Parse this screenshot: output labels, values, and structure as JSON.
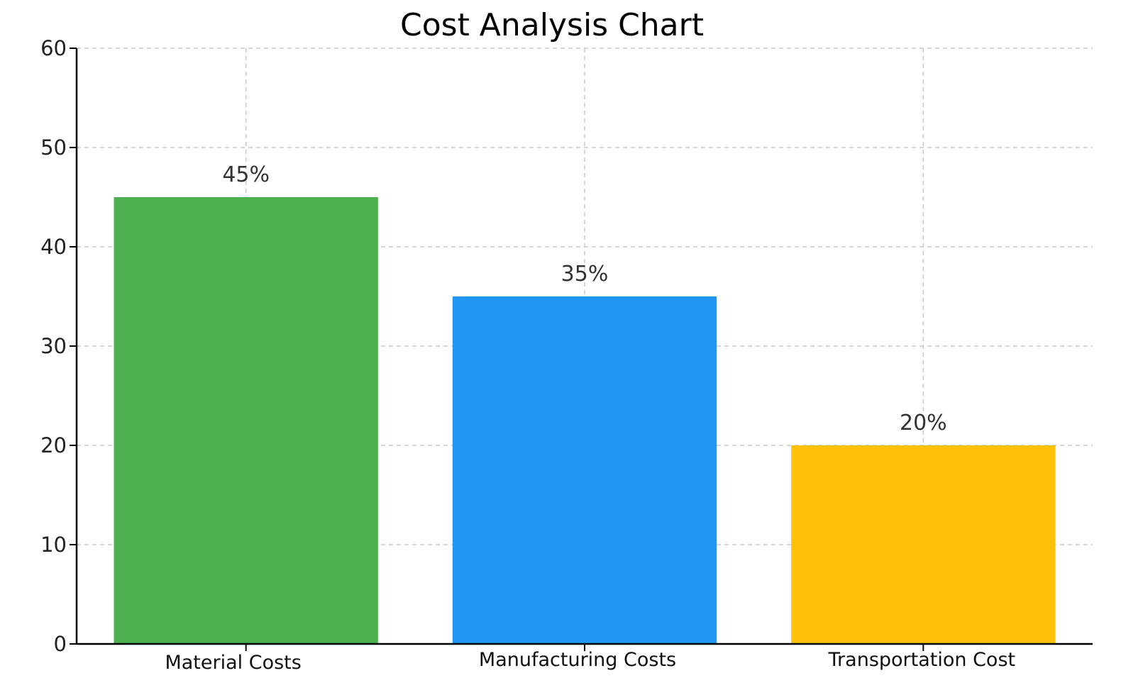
{
  "chart_data": {
    "type": "bar",
    "title": "Cost Analysis Chart",
    "xlabel": "",
    "ylabel": "",
    "categories": [
      "Material Costs",
      "Manufacturing Costs",
      "Transportation Cost"
    ],
    "values": [
      45,
      35,
      20
    ],
    "data_labels": [
      "45%",
      "35%",
      "20%"
    ],
    "colors": [
      "#4caf50",
      "#2196f3",
      "#ffc107"
    ],
    "ylim": [
      0,
      60
    ],
    "yticks": [
      0,
      10,
      20,
      30,
      40,
      50,
      60
    ],
    "ytick_labels": [
      "0",
      "10",
      "20",
      "30",
      "40",
      "50",
      "60"
    ],
    "grid": true,
    "legend": "none"
  }
}
